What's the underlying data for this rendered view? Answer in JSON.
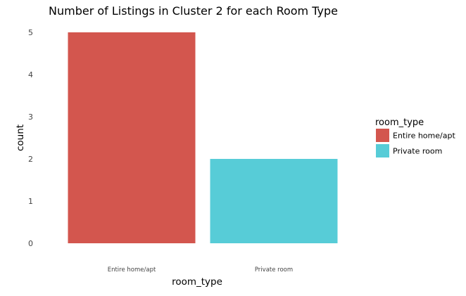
{
  "chart_data": {
    "type": "bar",
    "title": "Number of Listings in Cluster 2 for each Room Type",
    "xlabel": "room_type",
    "ylabel": "count",
    "categories": [
      "Entire home/apt",
      "Private room"
    ],
    "values": [
      5,
      2
    ],
    "colors": [
      "#d3564e",
      "#57ccd7"
    ],
    "ylim": [
      0,
      5
    ],
    "yticks": [
      "0",
      "1",
      "2",
      "3",
      "4",
      "5"
    ],
    "grid": false,
    "legend": {
      "title": "room_type",
      "placement": "right",
      "entries": [
        "Entire home/apt",
        "Private room"
      ]
    }
  }
}
